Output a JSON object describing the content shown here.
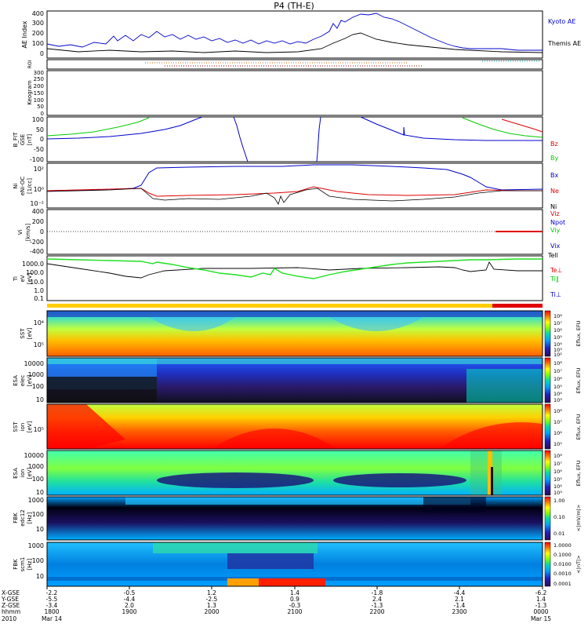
{
  "title": "P4 (TH-E)",
  "colors": {
    "kyoto": "#0000cc",
    "themis": "#000000",
    "red": "#e00000",
    "green": "#00cc00",
    "blue": "#0000cc",
    "roi_a": "#c86400",
    "roi_b": "#a00000",
    "roi_c": "#00a0a0"
  },
  "panels": {
    "ae": {
      "ylabel": "AE Index",
      "ticks": [
        "400",
        "300",
        "200",
        "100",
        "0"
      ],
      "legend": [
        "Kyoto AE",
        "Themis AE"
      ]
    },
    "roi": {
      "ylabel": "ROI"
    },
    "keogram": {
      "ylabel": "Keogram",
      "ticks": [
        "300",
        "250",
        "200",
        "150",
        "100",
        "50",
        "0"
      ]
    },
    "bfit": {
      "ylabel_lines": [
        "B_FIT",
        "GSE",
        "[nT]"
      ],
      "ticks": [
        "100",
        "50",
        "0",
        "-50",
        "-100"
      ],
      "legend": [
        "Bz",
        "By",
        "Bx"
      ]
    },
    "ni": {
      "ylabel_lines": [
        "Ni",
        "eNi-OC",
        "[1/cc]"
      ],
      "ticks": [
        "10²",
        "10⁰",
        "10⁻²"
      ],
      "legend": [
        "Ne",
        "Ni",
        "Npot"
      ]
    },
    "vi": {
      "ylabel_lines": [
        "Vi",
        "[km/s]"
      ],
      "ticks": [
        "400",
        "200",
        "0",
        "-200",
        "-400"
      ],
      "legend": [
        "Viz",
        "Viy",
        "Vix"
      ]
    },
    "ti": {
      "ylabel_lines": [
        "Ti",
        "eV",
        "[eV]"
      ],
      "ticks": [
        "1000.0",
        "100.0",
        "10.0",
        "1.0",
        "0.1"
      ],
      "legend": [
        "Tell",
        "Te⊥",
        "Ti∥",
        "Ti⊥"
      ]
    },
    "sst_e": {
      "ylabel_lines": [
        "SST",
        "[eV]"
      ],
      "ticks": [
        "10⁴",
        "10⁵"
      ],
      "cbar_label": "Eflux, EFU",
      "cbar_ticks": [
        "10⁸",
        "10⁷",
        "10⁶",
        "10⁵",
        "10⁴",
        "10³",
        "10²"
      ]
    },
    "esa_e": {
      "ylabel_lines": [
        "ESA",
        "elec",
        "[eV]"
      ],
      "ticks": [
        "10000",
        "1000",
        "100",
        "10"
      ],
      "cbar_label": "Eflux, EFU",
      "cbar_ticks": [
        "10⁸",
        "10⁷",
        "10⁶",
        "10⁵",
        "10⁴",
        "10³"
      ]
    },
    "sst_i": {
      "ylabel_lines": [
        "SST",
        "ion",
        "[eV]"
      ],
      "ticks": [
        "10⁵"
      ],
      "cbar_label": "Eflux, EFU",
      "cbar_ticks": [
        "10⁸",
        "10⁷",
        "10⁶",
        "10⁵"
      ]
    },
    "esa_i": {
      "ylabel_lines": [
        "ESA",
        "ion",
        "[eV]"
      ],
      "ticks": [
        "10000",
        "1000",
        "100",
        "10"
      ],
      "cbar_label": "Eflux, EFU",
      "cbar_ticks": [
        "10⁸",
        "10⁷",
        "10⁶",
        "10⁵",
        "10⁴",
        "10³"
      ]
    },
    "fbk_edc": {
      "ylabel_lines": [
        "FBK",
        "edc12",
        "[Hz]"
      ],
      "ticks": [
        "1000",
        "100",
        "10"
      ],
      "cbar_label": "<|mV/m|>",
      "cbar_ticks": [
        "1.00",
        "0.10",
        "0.01"
      ]
    },
    "fbk_scm": {
      "ylabel_lines": [
        "FBK",
        "scm1",
        "[Hz]"
      ],
      "ticks": [
        "1000",
        "100",
        "10"
      ],
      "cbar_label": "<|nT|>",
      "cbar_ticks": [
        "1.0000",
        "0.1000",
        "0.0100",
        "0.0010",
        "0.0001"
      ]
    }
  },
  "xaxis": {
    "row_labels": [
      "X-GSE",
      "Y-GSE",
      "Z-GSE",
      "hhmm",
      "2010"
    ],
    "columns": [
      [
        "-2.2",
        "-5.5",
        "-3.4",
        "1800",
        "Mar 14"
      ],
      [
        "-0.5",
        "-4.4",
        "2.0",
        "1900",
        ""
      ],
      [
        "1.2",
        "-2.5",
        "1.3",
        "2000",
        ""
      ],
      [
        "1.4",
        "0.9",
        "-0.3",
        "2100",
        ""
      ],
      [
        "-1.8",
        "2.4",
        "-1.3",
        "2200",
        ""
      ],
      [
        "-4.4",
        "2.1",
        "-1.4",
        "2300",
        ""
      ],
      [
        "-6.2",
        "1.4",
        "-1.3",
        "0000",
        "Mar 15"
      ]
    ]
  },
  "chart_data": [
    {
      "type": "line",
      "name": "AE Index",
      "x": [
        18.0,
        18.5,
        19.0,
        19.5,
        20.0,
        20.25,
        20.5,
        20.75,
        21.0,
        21.25,
        21.5,
        21.75,
        22.0,
        22.25,
        22.5,
        22.75,
        23.0,
        23.5,
        24.0
      ],
      "series": [
        {
          "name": "Kyoto AE",
          "values": [
            120,
            100,
            170,
            160,
            175,
            170,
            165,
            150,
            130,
            140,
            160,
            260,
            370,
            350,
            260,
            170,
            100,
            40,
            20
          ]
        },
        {
          "name": "Themis AE",
          "values": [
            60,
            50,
            70,
            60,
            70,
            65,
            60,
            55,
            50,
            55,
            80,
            150,
            170,
            140,
            110,
            80,
            60,
            30,
            10
          ]
        }
      ],
      "ylim": [
        -50,
        420
      ]
    },
    {
      "type": "line",
      "name": "B_FIT",
      "x": [
        18.0,
        18.5,
        18.8,
        19.0,
        19.5,
        20.0,
        20.3,
        20.45,
        20.6,
        21.0,
        21.3,
        21.4,
        21.6,
        22.0,
        22.5,
        23.0,
        23.5,
        24.0
      ],
      "series": [
        {
          "name": "Bx",
          "values": [
            5,
            20,
            60,
            100,
            100,
            100,
            90,
            20,
            -100,
            -100,
            -100,
            -100,
            100,
            100,
            40,
            5,
            2,
            0
          ]
        },
        {
          "name": "By",
          "values": [
            20,
            40,
            80,
            100,
            100,
            100,
            100,
            100,
            100,
            100,
            100,
            100,
            100,
            100,
            100,
            100,
            60,
            30
          ]
        },
        {
          "name": "Bz",
          "values": [
            100,
            100,
            100,
            100,
            100,
            100,
            100,
            100,
            100,
            100,
            100,
            100,
            100,
            100,
            100,
            100,
            100,
            40
          ]
        }
      ],
      "ylim": [
        -100,
        100
      ]
    },
    {
      "type": "line",
      "name": "Ni",
      "x": [
        18.0,
        18.5,
        18.75,
        19.0,
        19.5,
        20.0,
        20.5,
        21.0,
        21.5,
        22.0,
        22.5,
        23.0,
        23.3,
        23.5,
        24.0
      ],
      "series": [
        {
          "name": "Ne",
          "values": [
            0,
            0.2,
            0.4,
            0.2,
            -0.3,
            -0.4,
            -0.3,
            -0.2,
            0.3,
            0.1,
            -0.2,
            0,
            0.1,
            0.2,
            0.2
          ]
        },
        {
          "name": "Ni",
          "values": [
            0,
            0.2,
            0.4,
            -0.8,
            -1.0,
            -0.9,
            -0.6,
            -0.4,
            0.3,
            -0.8,
            -0.9,
            -0.5,
            0.2,
            0.3,
            0.2
          ]
        },
        {
          "name": "Npot",
          "values": [
            0,
            0.1,
            0.3,
            2.3,
            2.5,
            2.6,
            2.6,
            2.7,
            2.6,
            2.4,
            1.8,
            1.0,
            0.3,
            0.2,
            0.2
          ]
        }
      ],
      "ylim": [
        -3,
        3
      ],
      "yscale": "log"
    },
    {
      "type": "line",
      "name": "Ti",
      "x": [
        18.0,
        18.5,
        19.0,
        19.5,
        20.0,
        20.5,
        21.0,
        21.5,
        22.0,
        22.5,
        23.0,
        23.5,
        24.0
      ],
      "series": [
        {
          "name": "Tell",
          "values": [
            900,
            300,
            700,
            900,
            1000,
            1100,
            1200,
            900,
            800,
            700,
            500,
            400,
            500
          ]
        },
        {
          "name": "Ti∥",
          "values": [
            1400,
            800,
            1200,
            600,
            400,
            200,
            100,
            400,
            900,
            1200,
            1500,
            1500,
            1500
          ]
        }
      ],
      "ylim": [
        0.1,
        3000
      ],
      "yscale": "log"
    }
  ]
}
